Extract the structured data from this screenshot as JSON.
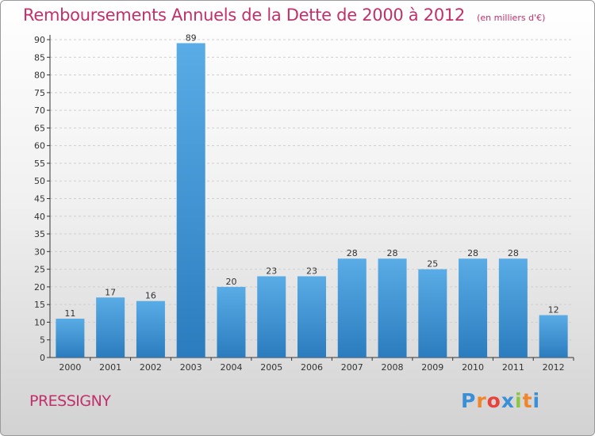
{
  "chart_data": {
    "type": "bar",
    "title": "Remboursements Annuels de la Dette de 2000 à 2012",
    "subtitle": "(en milliers d'€)",
    "categories": [
      "2000",
      "2001",
      "2002",
      "2003",
      "2004",
      "2005",
      "2006",
      "2007",
      "2008",
      "2009",
      "2010",
      "2011",
      "2012"
    ],
    "values": [
      11,
      17,
      16,
      89,
      20,
      23,
      23,
      28,
      28,
      25,
      28,
      28,
      12
    ],
    "ylim": [
      0,
      90
    ],
    "yticks": [
      0,
      5,
      10,
      15,
      20,
      25,
      30,
      35,
      40,
      45,
      50,
      55,
      60,
      65,
      70,
      75,
      80,
      85,
      90
    ],
    "xlabel": "",
    "ylabel": "",
    "grid": true,
    "bar_color_top": "#5aace6",
    "bar_color_bottom": "#2a7cbe"
  },
  "footer": {
    "city": "PRESSIGNY",
    "logo_letters": [
      "P",
      "r",
      "o",
      "x",
      "i",
      "t",
      "i"
    ],
    "logo_colors": [
      "#3b8fd6",
      "#f0862c",
      "#e8423a",
      "#3b8fd6",
      "#8cc63f",
      "#f0862c",
      "#3b8fd6"
    ]
  },
  "colors": {
    "title": "#c0306a",
    "axis": "#333333",
    "grid": "#cfcfcf"
  }
}
